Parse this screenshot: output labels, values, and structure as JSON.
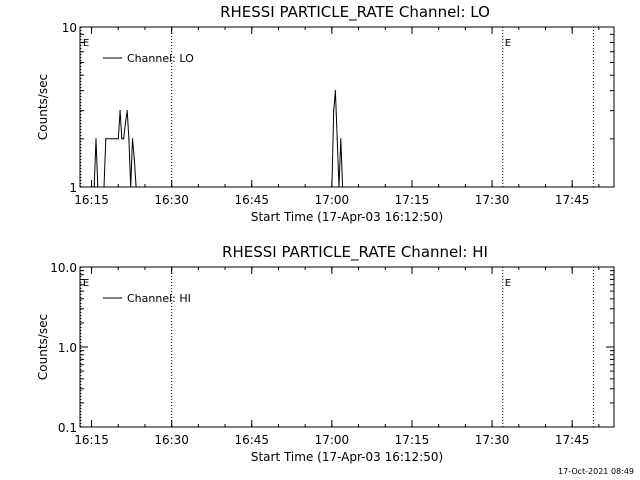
{
  "chart_data": [
    {
      "type": "line",
      "title": "RHESSI PARTICLE_RATE Channel: LO",
      "xlabel": "Start Time (17-Apr-03 16:12:50)",
      "ylabel": "Counts/sec",
      "x_start_minutes": 972.833,
      "xlim": [
        "16:12:50",
        "17:52:50"
      ],
      "yscale": "log",
      "ylim": [
        1,
        10
      ],
      "x_ticks": [
        "16:15",
        "16:30",
        "16:45",
        "17:00",
        "17:15",
        "17:30",
        "17:45"
      ],
      "y_ticks": [
        "1",
        "10"
      ],
      "legend": "Channel: LO",
      "legend_position": "top-left",
      "markers": [
        {
          "time": "16:13",
          "label": "E"
        },
        {
          "time": "16:30",
          "label": ""
        },
        {
          "time": "17:32",
          "label": "E"
        },
        {
          "time": "17:49",
          "label": ""
        }
      ],
      "series": [
        {
          "name": "Channel: LO",
          "points": [
            [
              "16:15:30",
              1.0
            ],
            [
              "16:15:50",
              2.0
            ],
            [
              "16:16:10",
              1.0
            ],
            [
              "16:17:20",
              1.0
            ],
            [
              "16:17:40",
              2.0
            ],
            [
              "16:20:00",
              2.0
            ],
            [
              "16:20:20",
              3.0
            ],
            [
              "16:20:40",
              2.0
            ],
            [
              "16:21:00",
              2.0
            ],
            [
              "16:21:20",
              2.5
            ],
            [
              "16:21:40",
              3.0
            ],
            [
              "16:22:00",
              2.0
            ],
            [
              "16:22:20",
              1.0
            ],
            [
              "16:22:40",
              2.0
            ],
            [
              "16:23:00",
              1.5
            ],
            [
              "16:23:20",
              1.0
            ],
            [
              "17:00:00",
              1.0
            ],
            [
              "17:00:20",
              3.0
            ],
            [
              "17:00:40",
              4.0
            ],
            [
              "17:01:00",
              2.0
            ],
            [
              "17:01:20",
              1.0
            ],
            [
              "17:01:40",
              2.0
            ],
            [
              "17:02:00",
              1.0
            ]
          ]
        }
      ]
    },
    {
      "type": "line",
      "title": "RHESSI PARTICLE_RATE Channel: HI",
      "xlabel": "Start Time (17-Apr-03 16:12:50)",
      "ylabel": "Counts/sec",
      "x_start_minutes": 972.833,
      "xlim": [
        "16:12:50",
        "17:52:50"
      ],
      "yscale": "log",
      "ylim": [
        0.1,
        10
      ],
      "x_ticks": [
        "16:15",
        "16:30",
        "16:45",
        "17:00",
        "17:15",
        "17:30",
        "17:45"
      ],
      "y_ticks": [
        "0.1",
        "1.0",
        "10.0"
      ],
      "legend": "Channel: HI",
      "legend_position": "top-left",
      "markers": [
        {
          "time": "16:13",
          "label": "E"
        },
        {
          "time": "16:30",
          "label": ""
        },
        {
          "time": "17:32",
          "label": "E"
        },
        {
          "time": "17:49",
          "label": ""
        }
      ],
      "series": [
        {
          "name": "Channel: HI",
          "points": []
        }
      ]
    }
  ],
  "footer": "17-Oct-2021 08:49"
}
